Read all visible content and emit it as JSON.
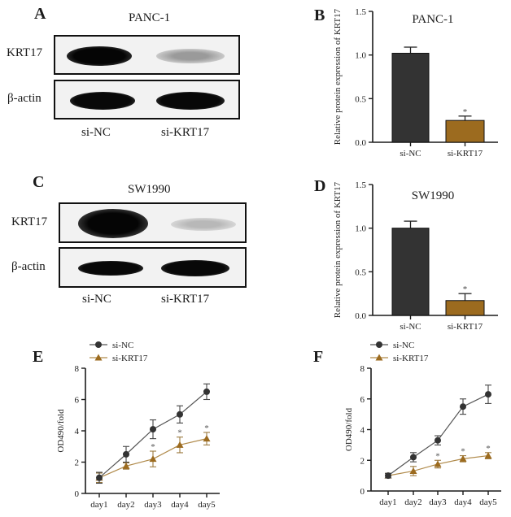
{
  "panels": {
    "A": {
      "letter": "A",
      "title": "PANC-1",
      "rows": [
        "KRT17",
        "β-actin"
      ],
      "lanes": [
        "si-NC",
        "si-KRT17"
      ]
    },
    "B": {
      "letter": "B",
      "title": "PANC-1"
    },
    "C": {
      "letter": "C",
      "title": "SW1990",
      "rows": [
        "KRT17",
        "β-actin"
      ],
      "lanes": [
        "si-NC",
        "si-KRT17"
      ]
    },
    "D": {
      "letter": "D",
      "title": "SW1990"
    },
    "E": {
      "letter": "E"
    },
    "F": {
      "letter": "F"
    }
  },
  "colors": {
    "si_NC": "#333333",
    "si_KRT17": "#9c6b1f",
    "axis": "#1a1a1a"
  },
  "chart_data": [
    {
      "id": "B",
      "type": "bar",
      "title": "PANC-1",
      "categories": [
        "si-NC",
        "si-KRT17"
      ],
      "values": [
        1.02,
        0.25
      ],
      "errors": [
        0.07,
        0.05
      ],
      "significance": [
        "",
        "*"
      ],
      "xlabel": "",
      "ylabel": "Relative protein expression of KRT17",
      "ylim": [
        0,
        1.5
      ],
      "yticks": [
        "0.0",
        "0.5",
        "1.0",
        "1.5"
      ]
    },
    {
      "id": "D",
      "type": "bar",
      "title": "SW1990",
      "categories": [
        "si-NC",
        "si-KRT17"
      ],
      "values": [
        1.0,
        0.17
      ],
      "errors": [
        0.08,
        0.08
      ],
      "significance": [
        "",
        "*"
      ],
      "xlabel": "",
      "ylabel": "Relative protein expression of KRT17",
      "ylim": [
        0,
        1.5
      ],
      "yticks": [
        "0.0",
        "0.5",
        "1.0",
        "1.5"
      ]
    },
    {
      "id": "E",
      "type": "line",
      "title": "",
      "x": [
        "day1",
        "day2",
        "day3",
        "day4",
        "day5"
      ],
      "series": [
        {
          "name": "si-NC",
          "marker": "circle",
          "values": [
            1.0,
            2.5,
            4.1,
            5.05,
            6.5
          ],
          "errors": [
            0.35,
            0.5,
            0.6,
            0.55,
            0.5
          ]
        },
        {
          "name": "si-KRT17",
          "marker": "triangle",
          "values": [
            1.0,
            1.75,
            2.2,
            3.1,
            3.5
          ],
          "errors": [
            0.3,
            0.2,
            0.5,
            0.5,
            0.4
          ],
          "significance": [
            "",
            "",
            "*",
            "*",
            "*"
          ]
        }
      ],
      "xlabel": "",
      "ylabel": "OD490/fold",
      "ylim": [
        0,
        8
      ],
      "yticks": [
        "0",
        "2",
        "4",
        "6",
        "8"
      ],
      "legend_position": "top-left"
    },
    {
      "id": "F",
      "type": "line",
      "title": "",
      "x": [
        "day1",
        "day2",
        "day3",
        "day4",
        "day5"
      ],
      "series": [
        {
          "name": "si-NC",
          "marker": "circle",
          "values": [
            1.0,
            2.2,
            3.3,
            5.5,
            6.3
          ],
          "errors": [
            0.15,
            0.3,
            0.3,
            0.5,
            0.6
          ]
        },
        {
          "name": "si-KRT17",
          "marker": "triangle",
          "values": [
            1.0,
            1.3,
            1.75,
            2.1,
            2.3
          ],
          "errors": [
            0.15,
            0.3,
            0.25,
            0.2,
            0.2
          ],
          "significance": [
            "",
            "",
            "*",
            "*",
            "*"
          ]
        }
      ],
      "xlabel": "",
      "ylabel": "OD490/fold",
      "ylim": [
        0,
        8
      ],
      "yticks": [
        "0",
        "2",
        "4",
        "6",
        "8"
      ],
      "legend_position": "top-left"
    }
  ]
}
